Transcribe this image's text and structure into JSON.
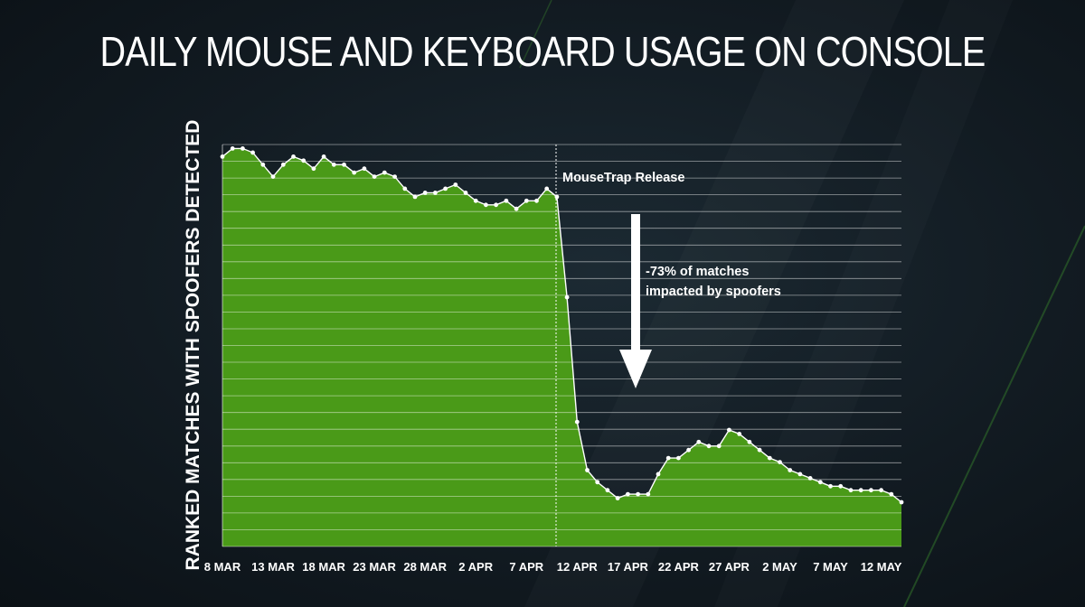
{
  "chart_data": {
    "type": "area",
    "title": "DAILY MOUSE AND KEYBOARD USAGE ON CONSOLE",
    "ylabel": "RANKED MATCHES WITH SPOOFERS DETECTED",
    "xlabel": "",
    "x_tick_labels": [
      "8 MAR",
      "13 MAR",
      "18 MAR",
      "23 MAR",
      "28 MAR",
      "2 APR",
      "7 APR",
      "12 APR",
      "17 APR",
      "22 APR",
      "27 APR",
      "2 MAY",
      "7 MAY",
      "12 MAY"
    ],
    "ylim": [
      0,
      100
    ],
    "grid": true,
    "fill_color": "#4a9a18",
    "line_color": "#ffffff",
    "values": [
      97,
      99,
      99,
      98,
      95,
      92,
      95,
      97,
      96,
      94,
      97,
      95,
      95,
      93,
      94,
      92,
      93,
      92,
      89,
      87,
      88,
      88,
      89,
      90,
      88,
      86,
      85,
      85,
      86,
      84,
      86,
      86,
      89,
      87,
      62,
      31,
      19,
      16,
      14,
      12,
      13,
      13,
      13,
      18,
      22,
      22,
      24,
      26,
      25,
      25,
      29,
      28,
      26,
      24,
      22,
      21,
      19,
      18,
      17,
      16,
      15,
      15,
      14,
      14,
      14,
      14,
      13,
      11
    ],
    "annotations": {
      "release_label": "MouseTrap Release",
      "drop_line1": "-73% of matches",
      "drop_line2": "impacted by spoofers"
    }
  }
}
